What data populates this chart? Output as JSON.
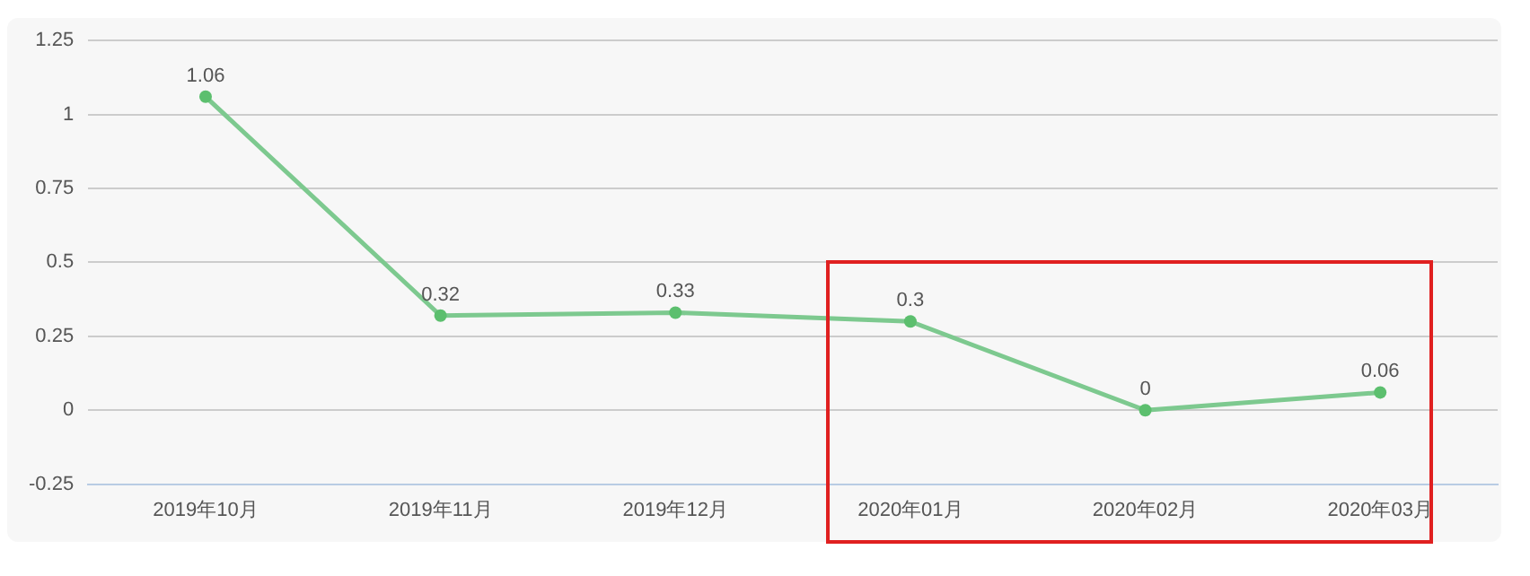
{
  "chart_data": {
    "type": "line",
    "categories": [
      "2019年10月",
      "2019年11月",
      "2019年12月",
      "2020年01月",
      "2020年02月",
      "2020年03月"
    ],
    "series": [
      {
        "color": "#7dc98f",
        "values": [
          1.06,
          0.32,
          0.33,
          0.3,
          0,
          0.06
        ]
      }
    ],
    "ylim": [
      -0.25,
      1.25
    ],
    "yticks": [
      -0.25,
      0,
      0.25,
      0.5,
      0.75,
      1,
      1.25
    ],
    "grid": "y",
    "data_labels": true,
    "marker": "circle",
    "line_style": "solid"
  }
}
